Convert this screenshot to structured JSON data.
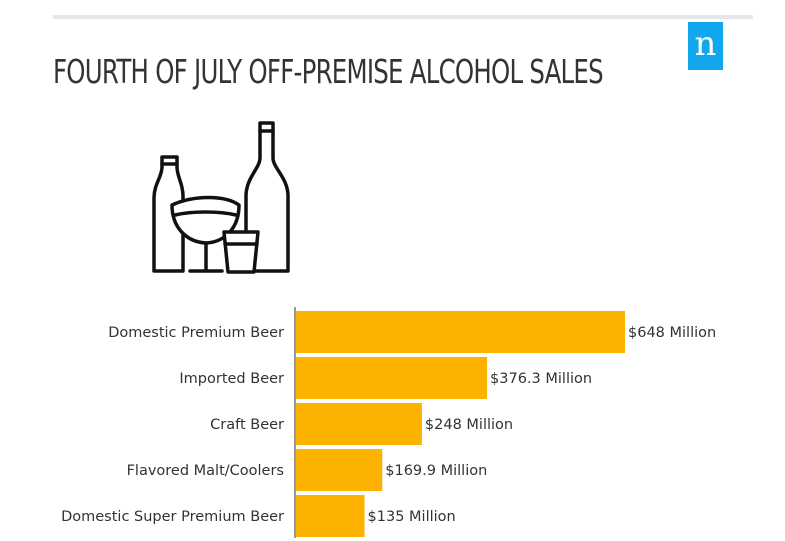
{
  "header": {
    "title": "FOURTH OF JULY OFF-PREMISE ALCOHOL SALES",
    "logo_text": "n"
  },
  "icons": {
    "illustration": "beer-bottles-glass-icon"
  },
  "colors": {
    "bar": "#fdb100",
    "axis": "#333333",
    "logo": "#11a7ee",
    "rule": "#e6e7ec"
  },
  "chart_data": {
    "type": "bar",
    "orientation": "horizontal",
    "categories": [
      "Domestic Premium Beer",
      "Imported Beer",
      "Craft Beer",
      "Flavored Malt/Coolers",
      "Domestic Super Premium Beer"
    ],
    "values": [
      648,
      376.3,
      248,
      169.9,
      135
    ],
    "value_labels": [
      "$648 Million",
      "$376.3 Million",
      "$248 Million",
      "$169.9 Million",
      "$135 Million"
    ],
    "xlim": [
      0,
      648
    ],
    "grid": false,
    "legend": "none"
  }
}
